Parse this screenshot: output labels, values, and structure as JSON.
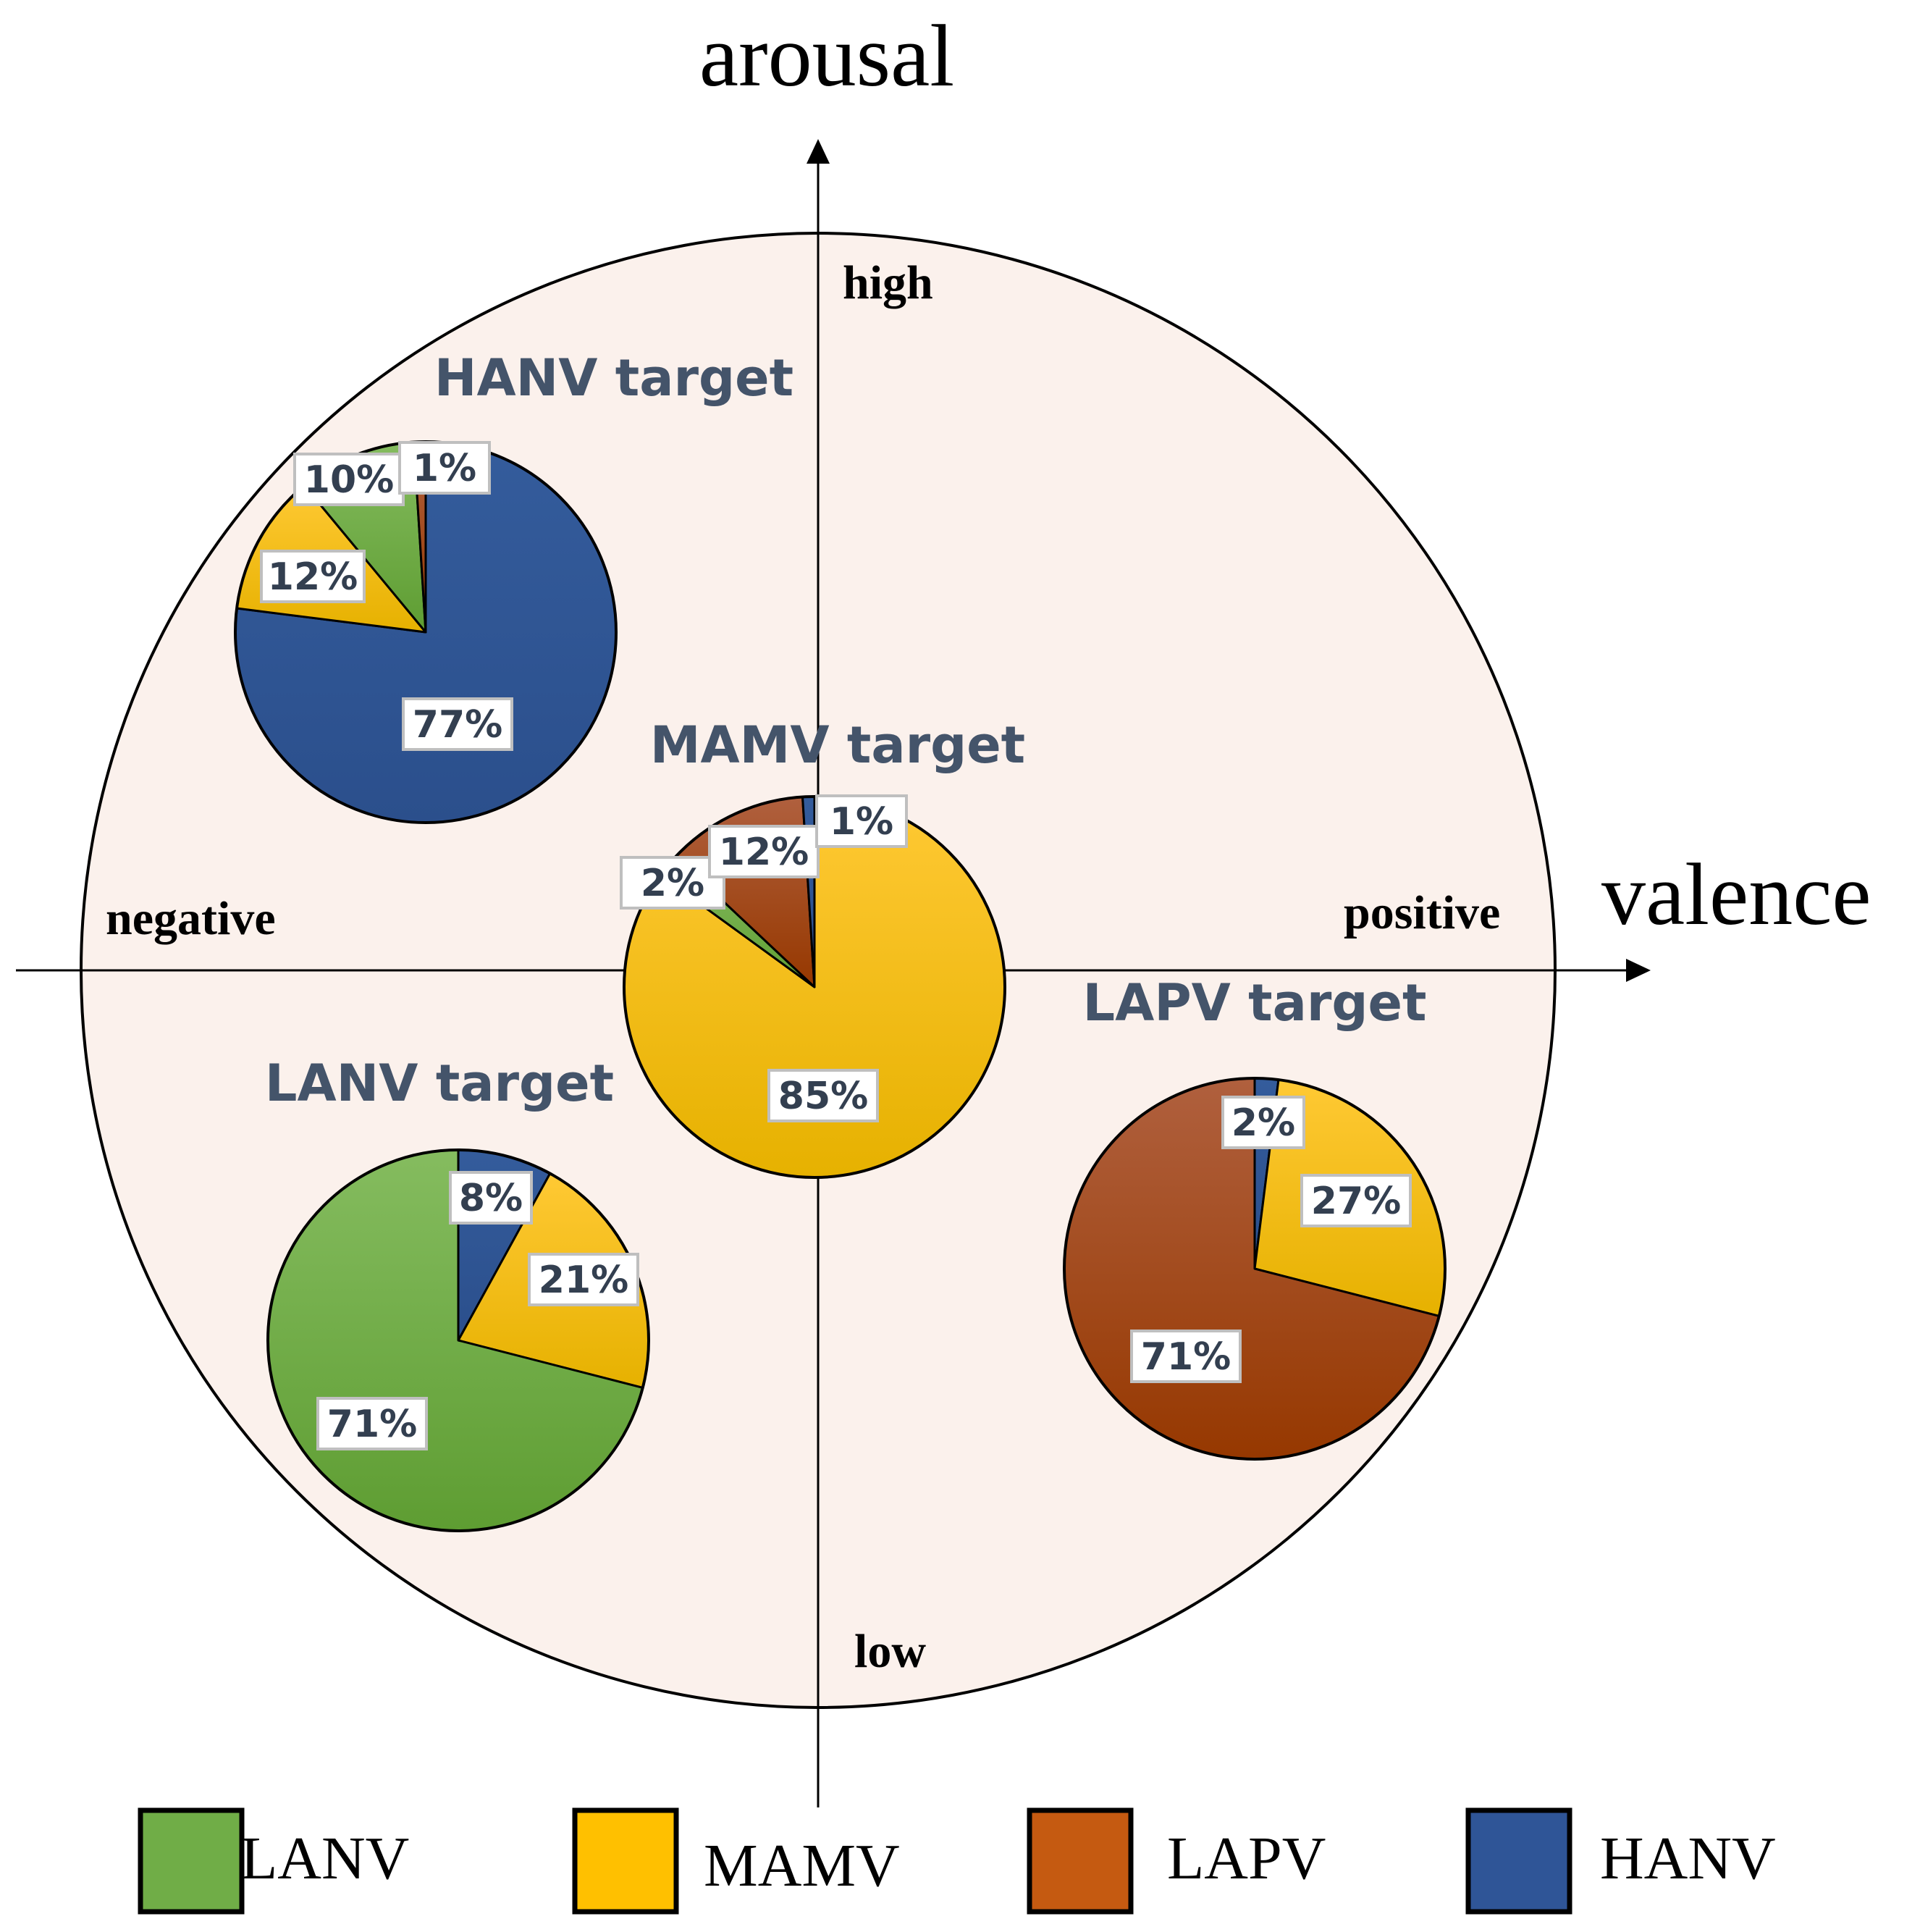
{
  "chart_data": {
    "type": "pie",
    "title": "",
    "axes": {
      "x_label": "valence",
      "y_label": "arousal",
      "x_negative_label": "negative",
      "x_positive_label": "positive",
      "y_high_label": "high",
      "y_low_label": "low"
    },
    "legend": [
      {
        "name": "LANV",
        "color": "#70ad47"
      },
      {
        "name": "MAMV",
        "color": "#ffc000"
      },
      {
        "name": "LAPV",
        "color": "#c55a11"
      },
      {
        "name": "HANV",
        "color": "#2f5597"
      }
    ],
    "pies": [
      {
        "title": "HANV target",
        "slices": [
          {
            "category": "HANV",
            "value": 77,
            "label": "77%"
          },
          {
            "category": "MAMV",
            "value": 12,
            "label": "12%"
          },
          {
            "category": "LANV",
            "value": 10,
            "label": "10%"
          },
          {
            "category": "LAPV",
            "value": 1,
            "label": "1%"
          }
        ]
      },
      {
        "title": "MAMV target",
        "slices": [
          {
            "category": "MAMV",
            "value": 85,
            "label": "85%"
          },
          {
            "category": "LANV",
            "value": 2,
            "label": "2%"
          },
          {
            "category": "LAPV",
            "value": 12,
            "label": "12%"
          },
          {
            "category": "HANV",
            "value": 1,
            "label": "1%"
          }
        ]
      },
      {
        "title": "LANV target",
        "slices": [
          {
            "category": "HANV",
            "value": 8,
            "label": "8%"
          },
          {
            "category": "MAMV",
            "value": 21,
            "label": "21%"
          },
          {
            "category": "LANV",
            "value": 71,
            "label": "71%"
          }
        ]
      },
      {
        "title": "LAPV target",
        "slices": [
          {
            "category": "HANV",
            "value": 2,
            "label": "2%"
          },
          {
            "category": "MAMV",
            "value": 27,
            "label": "27%"
          },
          {
            "category": "LAPV",
            "value": 71,
            "label": "71%"
          }
        ]
      }
    ]
  }
}
